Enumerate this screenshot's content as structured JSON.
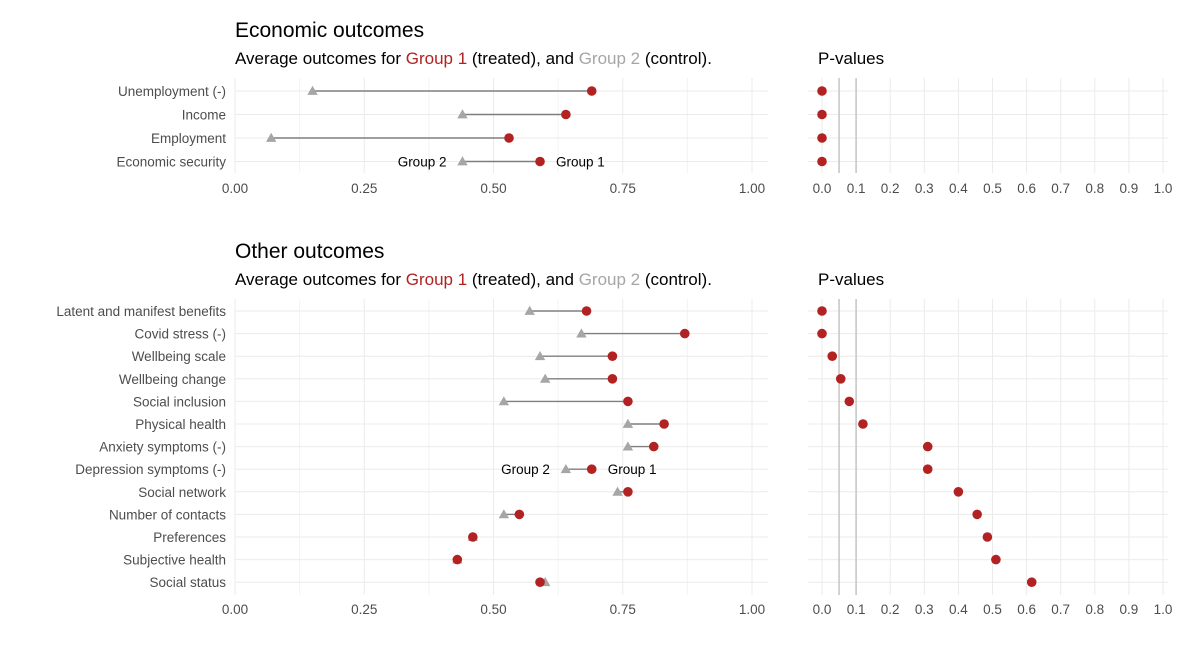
{
  "colors": {
    "group1": "#b22222",
    "group2": "#a6a6a6",
    "segment": "#7f7f7f",
    "text": "#000000",
    "axis_text": "#4d4d4d"
  },
  "chart_data": [
    {
      "type": "dumbbell",
      "title": "Economic outcomes",
      "subtitle": {
        "prefix": "Average outcomes for ",
        "group1": "Group 1",
        "middle": " (treated), and ",
        "group2": "Group 2",
        "suffix": " (control)."
      },
      "categories": [
        "Unemployment (-)",
        "Income",
        "Employment",
        "Economic security"
      ],
      "series": [
        {
          "name": "Group 1",
          "values": [
            0.69,
            0.64,
            0.53,
            0.59
          ]
        },
        {
          "name": "Group 2",
          "values": [
            0.15,
            0.44,
            0.07,
            0.44
          ]
        }
      ],
      "xlim": [
        0,
        1
      ],
      "xticks": [
        "0.00",
        "0.25",
        "0.50",
        "0.75",
        "1.00"
      ],
      "annotation": {
        "category": "Economic security",
        "left": "Group 2",
        "right": "Group 1"
      }
    },
    {
      "type": "scatter",
      "title": "P-values",
      "categories": [
        "Unemployment (-)",
        "Income",
        "Employment",
        "Economic security"
      ],
      "values": [
        0.0,
        0.0,
        0.0,
        0.0
      ],
      "xlim": [
        0,
        1
      ],
      "xticks": [
        "0.0",
        "0.1",
        "0.2",
        "0.3",
        "0.4",
        "0.5",
        "0.6",
        "0.7",
        "0.8",
        "0.9",
        "1.0"
      ],
      "reference_lines": [
        0.05,
        0.1
      ]
    },
    {
      "type": "dumbbell",
      "title": "Other outcomes",
      "subtitle": {
        "prefix": "Average outcomes for ",
        "group1": "Group 1",
        "middle": " (treated), and ",
        "group2": "Group 2",
        "suffix": " (control)."
      },
      "categories": [
        "Latent and manifest benefits",
        "Covid stress (-)",
        "Wellbeing scale",
        "Wellbeing change",
        "Social inclusion",
        "Physical health",
        "Anxiety symptoms (-)",
        "Depression symptoms (-)",
        "Social network",
        "Number of contacts",
        "Preferences",
        "Subjective health",
        "Social status"
      ],
      "series": [
        {
          "name": "Group 1",
          "values": [
            0.68,
            0.87,
            0.73,
            0.73,
            0.76,
            0.83,
            0.81,
            0.69,
            0.76,
            0.55,
            0.46,
            0.43,
            0.59
          ]
        },
        {
          "name": "Group 2",
          "values": [
            0.57,
            0.67,
            0.59,
            0.6,
            0.52,
            0.76,
            0.76,
            0.64,
            0.74,
            0.52,
            0.46,
            0.43,
            0.6
          ]
        }
      ],
      "xlim": [
        0,
        1
      ],
      "xticks": [
        "0.00",
        "0.25",
        "0.50",
        "0.75",
        "1.00"
      ],
      "annotation": {
        "category": "Depression symptoms (-)",
        "left": "Group 2",
        "right": "Group 1"
      }
    },
    {
      "type": "scatter",
      "title": "P-values",
      "categories": [
        "Latent and manifest benefits",
        "Covid stress (-)",
        "Wellbeing scale",
        "Wellbeing change",
        "Social inclusion",
        "Physical health",
        "Anxiety symptoms (-)",
        "Depression symptoms (-)",
        "Social network",
        "Number of contacts",
        "Preferences",
        "Subjective health",
        "Social status"
      ],
      "values": [
        0.0,
        0.0,
        0.03,
        0.055,
        0.08,
        0.12,
        0.31,
        0.31,
        0.4,
        0.455,
        0.485,
        0.51,
        0.615
      ],
      "xlim": [
        0,
        1
      ],
      "xticks": [
        "0.0",
        "0.1",
        "0.2",
        "0.3",
        "0.4",
        "0.5",
        "0.6",
        "0.7",
        "0.8",
        "0.9",
        "1.0"
      ],
      "reference_lines": [
        0.05,
        0.1
      ]
    }
  ]
}
